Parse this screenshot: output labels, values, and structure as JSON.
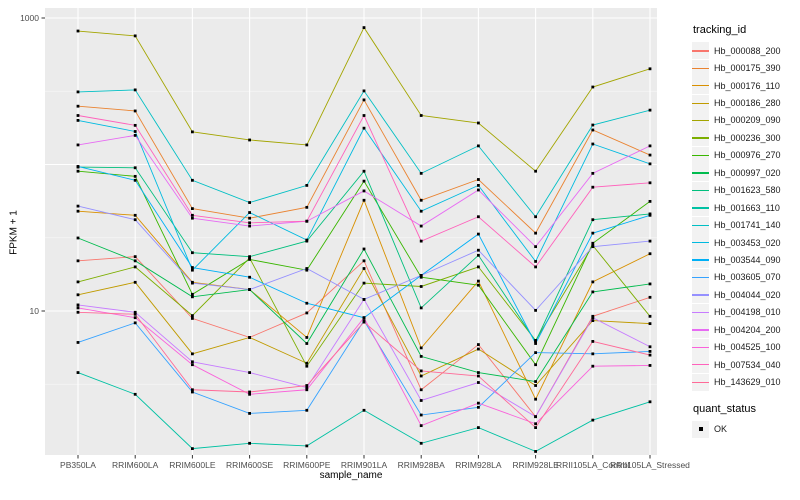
{
  "axes": {
    "x_title": "sample_name",
    "y_title": "FPKM + 1",
    "y_tick_labels": [
      "10",
      "1000"
    ]
  },
  "legend": {
    "tracking_title": "tracking_id",
    "status_title": "quant_status",
    "status_items": [
      {
        "label": "OK"
      }
    ]
  },
  "colors": {
    "panel_bg": "#EBEBEB",
    "grid_major": "#FFFFFF",
    "grid_minor": "#F6F6F6",
    "tick": "#333333",
    "tick_label": "#4D4D4D",
    "point": "#000000",
    "legend_key_bg": "#F2F2F2"
  },
  "chart_data": {
    "type": "line",
    "title": "",
    "xlabel": "sample_name",
    "ylabel": "FPKM + 1",
    "y_scale": "log10",
    "y_major_breaks": [
      10,
      100,
      1000
    ],
    "y_minor_breaks": [
      3.162,
      31.62,
      316.2
    ],
    "y_labeled_breaks": [
      1000,
      10
    ],
    "ylim": [
      1.04,
      1200
    ],
    "grid": true,
    "legend_position": "right",
    "categories": [
      "PB350LA",
      "RRIM600LA",
      "RRIM600LE",
      "RRIM600SE",
      "RRIM600PE",
      "RRIM901LA",
      "RRIM928BA",
      "RRIM928LA",
      "RRIM928LE",
      "RRII105LA_Control",
      "RRII105LA_Stressed"
    ],
    "series": [
      {
        "name": "Hb_000088_200",
        "color": "#F8766D",
        "values": [
          22,
          23.5,
          8.9,
          6.6,
          9.7,
          22,
          2.9,
          5.9,
          1.9,
          9.2,
          12.4
        ]
      },
      {
        "name": "Hb_000175_390",
        "color": "#EA8331",
        "values": [
          250,
          232,
          50,
          43,
          51,
          276,
          57,
          79,
          34,
          172,
          116
        ]
      },
      {
        "name": "Hb_000176_110",
        "color": "#D89000",
        "values": [
          48,
          45,
          15.7,
          14,
          6.6,
          57,
          5.6,
          16,
          2.5,
          15.8,
          24.6
        ]
      },
      {
        "name": "Hb_000186_280",
        "color": "#C09B00",
        "values": [
          12.9,
          15.7,
          5.1,
          6.6,
          4.4,
          19.5,
          3.6,
          5.5,
          3.1,
          8.6,
          8.2
        ]
      },
      {
        "name": "Hb_000209_090",
        "color": "#A3A500",
        "values": [
          815,
          755,
          167,
          147,
          136,
          860,
          216,
          192,
          90,
          338,
          450
        ]
      },
      {
        "name": "Hb_000236_300",
        "color": "#7CAE00",
        "values": [
          15.8,
          20,
          9.3,
          23,
          4.2,
          15.5,
          14.7,
          20,
          6.3,
          28,
          9.2
        ]
      },
      {
        "name": "Hb_000976_270",
        "color": "#39B600",
        "values": [
          90,
          83,
          13,
          22.5,
          19,
          77,
          17,
          15,
          4.3,
          29,
          56
        ]
      },
      {
        "name": "Hb_000997_020",
        "color": "#00BB4E",
        "values": [
          31.5,
          22,
          12.5,
          14,
          6,
          26.5,
          4.9,
          3.8,
          3.3,
          13.5,
          15.3
        ]
      },
      {
        "name": "Hb_001623_580",
        "color": "#00BF7D",
        "values": [
          96,
          95,
          25,
          23.5,
          30,
          90,
          10.5,
          24,
          6.2,
          42,
          46
        ]
      },
      {
        "name": "Hb_001663_110",
        "color": "#00C1A3",
        "values": [
          3.8,
          2.7,
          1.15,
          1.25,
          1.2,
          2.1,
          1.25,
          1.6,
          1.1,
          1.8,
          2.4
        ]
      },
      {
        "name": "Hb_001741_140",
        "color": "#00BFC4",
        "values": [
          313,
          323,
          78,
          55,
          72,
          318,
          87,
          134,
          44,
          186,
          235
        ]
      },
      {
        "name": "Hb_003453_020",
        "color": "#00BAE0",
        "values": [
          200,
          168,
          19,
          47,
          30.5,
          177,
          48,
          72,
          21.8,
          138,
          101
        ]
      },
      {
        "name": "Hb_003544_090",
        "color": "#00B0F6",
        "values": [
          97,
          78,
          19.8,
          17,
          11.3,
          9,
          17.5,
          33.5,
          6,
          34,
          45
        ]
      },
      {
        "name": "Hb_003605_070",
        "color": "#35A2FF",
        "values": [
          6.1,
          8.3,
          2.8,
          2,
          2.1,
          8.6,
          1.95,
          2.2,
          5.2,
          5.1,
          5.3
        ]
      },
      {
        "name": "Hb_004044_020",
        "color": "#9590FF",
        "values": [
          52,
          42,
          15.5,
          14,
          19.5,
          12,
          17.5,
          26,
          10.1,
          27.5,
          30
        ]
      },
      {
        "name": "Hb_004198_010",
        "color": "#C77CFF",
        "values": [
          11,
          9.8,
          4.5,
          3.8,
          3,
          12,
          2.45,
          3.25,
          1.9,
          9,
          5.7
        ]
      },
      {
        "name": "Hb_004204_200",
        "color": "#E76BF3",
        "values": [
          136,
          158,
          43,
          38,
          41,
          66,
          38,
          67,
          27.5,
          87,
          134
        ]
      },
      {
        "name": "Hb_004525_100",
        "color": "#FA62DB",
        "values": [
          10.5,
          9,
          4.3,
          2.7,
          2.9,
          9,
          1.65,
          2.35,
          1.7,
          4.2,
          4.25
        ]
      },
      {
        "name": "Hb_007534_040",
        "color": "#FF62BC",
        "values": [
          216,
          185,
          45,
          40,
          41,
          216,
          30,
          44,
          20,
          70,
          75
        ]
      },
      {
        "name": "Hb_143629_010",
        "color": "#FF6A98",
        "values": [
          9.8,
          9.5,
          2.9,
          2.8,
          3.1,
          8.4,
          3.9,
          3.6,
          1.6,
          6.2,
          5
        ]
      }
    ]
  }
}
